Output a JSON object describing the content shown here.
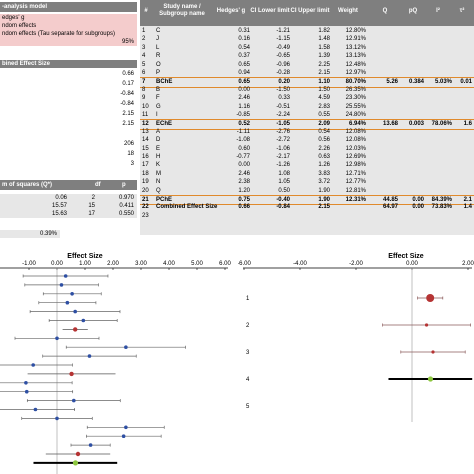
{
  "left_panel": {
    "model_header": "-analysis model",
    "model_options": [
      "edges' g",
      "ndom effects",
      "ndom effects (Tau separate for subgroups)"
    ],
    "confidence": "95%",
    "combined_effect_header": "bined Effect Size",
    "combined_values": [
      "0.66",
      "0.17",
      "-0.84",
      "-0.84",
      "2.15",
      "2.15"
    ],
    "counts": [
      "206",
      "18",
      "3"
    ],
    "q_header": {
      "label": "m of squares (Q*)",
      "df": "df",
      "p": "p"
    },
    "q_rows": [
      {
        "q": "0.06",
        "df": "2",
        "p": "0.970"
      },
      {
        "q": "15.57",
        "df": "15",
        "p": "0.411"
      },
      {
        "q": "15.63",
        "df": "17",
        "p": "0.550"
      }
    ],
    "percent": "0.39%"
  },
  "table": {
    "headers": {
      "num": "#",
      "study": "Study name / Subgroup name",
      "g": "Hedges' g",
      "cil": "CI Lower limit",
      "ciu": "CI Upper limit",
      "weight": "Weight",
      "q": "Q",
      "pq": "pQ",
      "i2": "I²",
      "t2": "τ²"
    },
    "rows": [
      {
        "n": "1",
        "name": "C",
        "g": "0.31",
        "lo": "-1.21",
        "hi": "1.82",
        "w": "12.80%",
        "q": "",
        "pq": "",
        "i2": "",
        "t2": "",
        "type": "study"
      },
      {
        "n": "2",
        "name": "J",
        "g": "0.16",
        "lo": "-1.15",
        "hi": "1.48",
        "w": "12.91%",
        "q": "",
        "pq": "",
        "i2": "",
        "t2": "",
        "type": "study"
      },
      {
        "n": "3",
        "name": "L",
        "g": "0.54",
        "lo": "-0.49",
        "hi": "1.58",
        "w": "13.12%",
        "q": "",
        "pq": "",
        "i2": "",
        "t2": "",
        "type": "study"
      },
      {
        "n": "4",
        "name": "R",
        "g": "0.37",
        "lo": "-0.65",
        "hi": "1.39",
        "w": "13.13%",
        "q": "",
        "pq": "",
        "i2": "",
        "t2": "",
        "type": "study"
      },
      {
        "n": "5",
        "name": "O",
        "g": "0.65",
        "lo": "-0.96",
        "hi": "2.25",
        "w": "12.48%",
        "q": "",
        "pq": "",
        "i2": "",
        "t2": "",
        "type": "study"
      },
      {
        "n": "6",
        "name": "P",
        "g": "0.94",
        "lo": "-0.28",
        "hi": "2.15",
        "w": "12.97%",
        "q": "",
        "pq": "",
        "i2": "",
        "t2": "",
        "type": "study"
      },
      {
        "n": "7",
        "name": "BChE",
        "g": "0.65",
        "lo": "0.20",
        "hi": "1.10",
        "w": "80.70%",
        "q": "5.26",
        "pq": "0.384",
        "i2": "5.03%",
        "t2": "0.01",
        "type": "subgroup"
      },
      {
        "n": "8",
        "name": "B",
        "g": "0.00",
        "lo": "-1.50",
        "hi": "1.50",
        "w": "26.35%",
        "q": "",
        "pq": "",
        "i2": "",
        "t2": "",
        "type": "study"
      },
      {
        "n": "9",
        "name": "F",
        "g": "2.46",
        "lo": "0.33",
        "hi": "4.59",
        "w": "23.30%",
        "q": "",
        "pq": "",
        "i2": "",
        "t2": "",
        "type": "study"
      },
      {
        "n": "10",
        "name": "G",
        "g": "1.16",
        "lo": "-0.51",
        "hi": "2.83",
        "w": "25.55%",
        "q": "",
        "pq": "",
        "i2": "",
        "t2": "",
        "type": "study"
      },
      {
        "n": "11",
        "name": "I",
        "g": "-0.85",
        "lo": "-2.24",
        "hi": "0.55",
        "w": "24.80%",
        "q": "",
        "pq": "",
        "i2": "",
        "t2": "",
        "type": "study"
      },
      {
        "n": "12",
        "name": "EChE",
        "g": "0.52",
        "lo": "-1.05",
        "hi": "2.09",
        "w": "6.94%",
        "q": "13.68",
        "pq": "0.003",
        "i2": "78.06%",
        "t2": "1.6",
        "type": "subgroup"
      },
      {
        "n": "13",
        "name": "A",
        "g": "-1.11",
        "lo": "-2.76",
        "hi": "0.54",
        "w": "12.08%",
        "q": "",
        "pq": "",
        "i2": "",
        "t2": "",
        "type": "study"
      },
      {
        "n": "14",
        "name": "D",
        "g": "-1.08",
        "lo": "-2.72",
        "hi": "0.56",
        "w": "12.08%",
        "q": "",
        "pq": "",
        "i2": "",
        "t2": "",
        "type": "study"
      },
      {
        "n": "15",
        "name": "E",
        "g": "0.60",
        "lo": "-1.06",
        "hi": "2.26",
        "w": "12.03%",
        "q": "",
        "pq": "",
        "i2": "",
        "t2": "",
        "type": "study"
      },
      {
        "n": "16",
        "name": "H",
        "g": "-0.77",
        "lo": "-2.17",
        "hi": "0.63",
        "w": "12.69%",
        "q": "",
        "pq": "",
        "i2": "",
        "t2": "",
        "type": "study"
      },
      {
        "n": "17",
        "name": "K",
        "g": "0.00",
        "lo": "-1.26",
        "hi": "1.26",
        "w": "12.98%",
        "q": "",
        "pq": "",
        "i2": "",
        "t2": "",
        "type": "study"
      },
      {
        "n": "18",
        "name": "M",
        "g": "2.46",
        "lo": "1.08",
        "hi": "3.83",
        "w": "12.71%",
        "q": "",
        "pq": "",
        "i2": "",
        "t2": "",
        "type": "study"
      },
      {
        "n": "19",
        "name": "N",
        "g": "2.38",
        "lo": "1.05",
        "hi": "3.72",
        "w": "12.77%",
        "q": "",
        "pq": "",
        "i2": "",
        "t2": "",
        "type": "study"
      },
      {
        "n": "20",
        "name": "Q",
        "g": "1.20",
        "lo": "0.50",
        "hi": "1.90",
        "w": "12.81%",
        "q": "",
        "pq": "",
        "i2": "",
        "t2": "",
        "type": "study"
      },
      {
        "n": "21",
        "name": "PChE",
        "g": "0.75",
        "lo": "-0.40",
        "hi": "1.90",
        "w": "12.31%",
        "q": "44.85",
        "pq": "0.00",
        "i2": "84.39%",
        "t2": "2.1",
        "type": "subgroup"
      },
      {
        "n": "22",
        "name": "Combined Effect Size",
        "g": "0.66",
        "lo": "-0.84",
        "hi": "2.15",
        "w": "",
        "q": "64.97",
        "pq": "0.00",
        "i2": "73.83%",
        "t2": "1.4",
        "type": "combined"
      },
      {
        "n": "23",
        "name": "",
        "g": "",
        "lo": "",
        "hi": "",
        "w": "",
        "q": "",
        "pq": "",
        "i2": "",
        "t2": "",
        "type": "empty"
      }
    ]
  },
  "chart_data": [
    {
      "type": "scatter",
      "title": "Effect Size",
      "xlim": [
        -1.5,
        6
      ],
      "x_ticks": [
        "-1.00",
        "0.00",
        "1.00",
        "2.00",
        "3.00",
        "4.00",
        "5.00",
        "6.00"
      ],
      "x_tick_values": [
        -1,
        0,
        1,
        2,
        3,
        4,
        5,
        6
      ],
      "points": [
        {
          "g": 0.31,
          "lo": -1.21,
          "hi": 1.82,
          "kind": "study"
        },
        {
          "g": 0.16,
          "lo": -1.15,
          "hi": 1.48,
          "kind": "study"
        },
        {
          "g": 0.54,
          "lo": -0.49,
          "hi": 1.58,
          "kind": "study"
        },
        {
          "g": 0.37,
          "lo": -0.65,
          "hi": 1.39,
          "kind": "study"
        },
        {
          "g": 0.65,
          "lo": -0.96,
          "hi": 2.25,
          "kind": "study"
        },
        {
          "g": 0.94,
          "lo": -0.28,
          "hi": 2.15,
          "kind": "study"
        },
        {
          "g": 0.65,
          "lo": 0.2,
          "hi": 1.1,
          "kind": "subgroup"
        },
        {
          "g": 0.0,
          "lo": -1.5,
          "hi": 1.5,
          "kind": "study"
        },
        {
          "g": 2.46,
          "lo": 0.33,
          "hi": 4.59,
          "kind": "study"
        },
        {
          "g": 1.16,
          "lo": -0.51,
          "hi": 2.83,
          "kind": "study"
        },
        {
          "g": -0.85,
          "lo": -2.24,
          "hi": 0.55,
          "kind": "study"
        },
        {
          "g": 0.52,
          "lo": -1.05,
          "hi": 2.09,
          "kind": "subgroup"
        },
        {
          "g": -1.11,
          "lo": -2.76,
          "hi": 0.54,
          "kind": "study"
        },
        {
          "g": -1.08,
          "lo": -2.72,
          "hi": 0.56,
          "kind": "study"
        },
        {
          "g": 0.6,
          "lo": -1.06,
          "hi": 2.26,
          "kind": "study"
        },
        {
          "g": -0.77,
          "lo": -2.17,
          "hi": 0.63,
          "kind": "study"
        },
        {
          "g": 0.0,
          "lo": -1.26,
          "hi": 1.26,
          "kind": "study"
        },
        {
          "g": 2.46,
          "lo": 1.08,
          "hi": 3.83,
          "kind": "study"
        },
        {
          "g": 2.38,
          "lo": 1.05,
          "hi": 3.72,
          "kind": "study"
        },
        {
          "g": 1.2,
          "lo": 0.5,
          "hi": 1.9,
          "kind": "study"
        },
        {
          "g": 0.75,
          "lo": -0.4,
          "hi": 1.9,
          "kind": "subgroup"
        },
        {
          "g": 0.66,
          "lo": -0.84,
          "hi": 2.15,
          "kind": "combined"
        }
      ]
    },
    {
      "type": "scatter",
      "title": "Effect Size",
      "xlim": [
        -6,
        2
      ],
      "x_ticks": [
        "-6.00",
        "-4.00",
        "-2.00",
        "0.00",
        "2.00"
      ],
      "x_tick_values": [
        -6,
        -4,
        -2,
        0,
        2
      ],
      "y_labels": [
        "1",
        "2",
        "3",
        "4",
        "5"
      ],
      "points": [
        {
          "g": 0.65,
          "lo": 0.2,
          "hi": 1.1,
          "kind": "subgroup-large"
        },
        {
          "g": 0.52,
          "lo": -1.05,
          "hi": 2.09,
          "kind": "subgroup"
        },
        {
          "g": 0.75,
          "lo": -0.4,
          "hi": 1.9,
          "kind": "subgroup"
        },
        {
          "g": 0.66,
          "lo": -0.84,
          "hi": 2.15,
          "kind": "combined"
        }
      ]
    }
  ]
}
